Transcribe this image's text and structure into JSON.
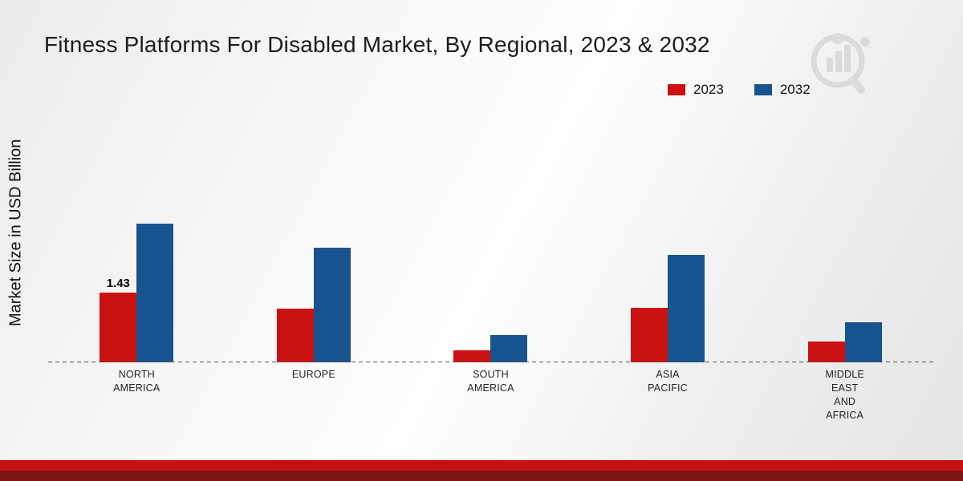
{
  "title": "Fitness Platforms For Disabled Market, By Regional, 2023 & 2032",
  "y_axis_label": "Market Size in USD Billion",
  "legend": [
    {
      "label": "2023",
      "color": "#cc1111"
    },
    {
      "label": "2032",
      "color": "#17538f"
    }
  ],
  "chart_data": {
    "type": "bar",
    "title": "Fitness Platforms For Disabled Market, By Regional, 2023 & 2032",
    "ylabel": "Market Size in USD Billion",
    "xlabel": "",
    "categories": [
      "NORTH AMERICA",
      "EUROPE",
      "SOUTH AMERICA",
      "ASIA PACIFIC",
      "MIDDLE EAST AND AFRICA"
    ],
    "category_label_lines": [
      [
        "NORTH",
        "AMERICA"
      ],
      [
        "EUROPE"
      ],
      [
        "SOUTH",
        "AMERICA"
      ],
      [
        "ASIA",
        "PACIFIC"
      ],
      [
        "MIDDLE",
        "EAST",
        "AND",
        "AFRICA"
      ]
    ],
    "series": [
      {
        "name": "2023",
        "color": "#cc1111",
        "values": [
          1.43,
          1.1,
          0.25,
          1.12,
          0.42
        ]
      },
      {
        "name": "2032",
        "color": "#17538f",
        "values": [
          2.83,
          2.35,
          0.55,
          2.2,
          0.82
        ]
      }
    ],
    "bar_label": {
      "series": "2023",
      "category_index": 0,
      "text": "1.43"
    },
    "ylim": [
      0,
      3.2
    ],
    "grid": false,
    "baseline_style": "dashed",
    "legend_position": "top-right"
  }
}
